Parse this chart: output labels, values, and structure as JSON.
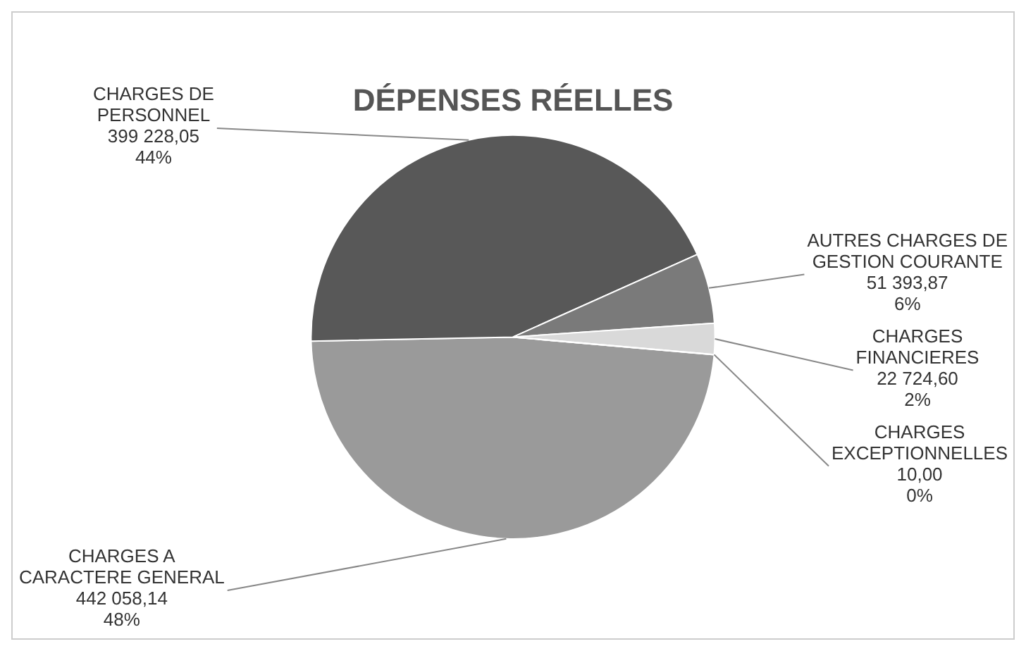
{
  "chart_data": {
    "type": "pie",
    "title": "DÉPENSES RÉELLES",
    "categories": [
      "CHARGES A CARACTERE GENERAL",
      "CHARGES DE PERSONNEL",
      "AUTRES CHARGES DE GESTION COURANTE",
      "CHARGES FINANCIERES",
      "CHARGES EXCEPTIONNELLES"
    ],
    "values": [
      442058.14,
      399228.05,
      51393.87,
      22724.6,
      10.0
    ],
    "colors": [
      "#9a9a9a",
      "#585858",
      "#7a7a7a",
      "#d9d9d9",
      "#3a3a3a"
    ],
    "value_labels": [
      "442 058,14\n48%",
      "399 228,05\n44%",
      "51 393,87\n6%",
      "22 724,60\n2%",
      "10,00\n0%"
    ],
    "legend": false
  }
}
